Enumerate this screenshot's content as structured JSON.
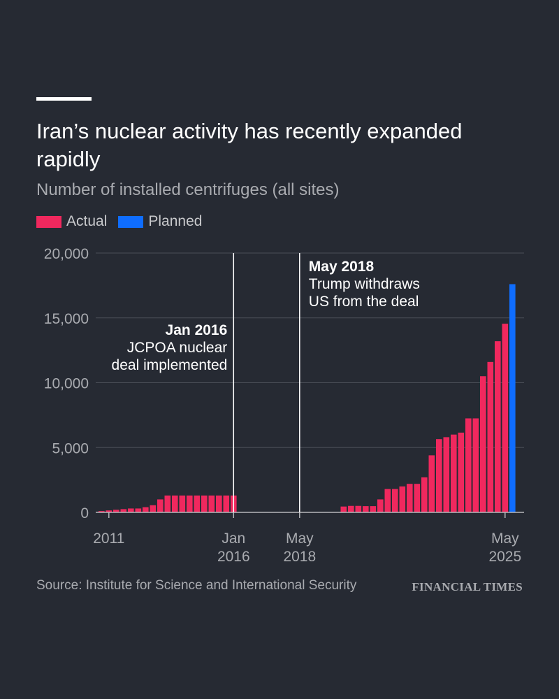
{
  "header": {
    "title": "Iran’s nuclear activity has recently expanded rapidly",
    "subtitle": "Number of installed centrifuges (all sites)"
  },
  "legend": [
    {
      "label": "Actual",
      "color": "#f0285e"
    },
    {
      "label": "Planned",
      "color": "#0f6dff"
    }
  ],
  "footer": {
    "source": "Source: Institute for Science and International Security",
    "brand": "FINANCIAL TIMES"
  },
  "chart_data": {
    "type": "bar",
    "ylim": [
      0,
      20000
    ],
    "y_ticks": [
      {
        "value": 0,
        "label": "0"
      },
      {
        "value": 5000,
        "label": "5,000"
      },
      {
        "value": 10000,
        "label": "10,000"
      },
      {
        "value": 15000,
        "label": "15,000"
      },
      {
        "value": 20000,
        "label": "20,000"
      }
    ],
    "x_ticks": [
      {
        "index": 1,
        "line1": "2011",
        "line2": ""
      },
      {
        "index": 18,
        "line1": "Jan",
        "line2": "2016"
      },
      {
        "index": 27,
        "line1": "May",
        "line2": "2018"
      },
      {
        "index": 55,
        "line1": "May",
        "line2": "2025"
      }
    ],
    "series": [
      {
        "name": "Actual",
        "color": "#f0285e",
        "values": [
          100,
          150,
          200,
          250,
          300,
          300,
          400,
          550,
          1000,
          1300,
          1300,
          1300,
          1300,
          1300,
          1300,
          1300,
          1300,
          1300,
          1300,
          0,
          0,
          0,
          0,
          0,
          0,
          0,
          0,
          0,
          0,
          0,
          0,
          0,
          0,
          450,
          500,
          500,
          480,
          480,
          1000,
          1800,
          1800,
          2000,
          2200,
          2200,
          2700,
          4400,
          5650,
          5800,
          6000,
          6150,
          7250,
          7250,
          10500,
          11600,
          13200,
          14550,
          0
        ]
      },
      {
        "name": "Planned",
        "color": "#0f6dff",
        "values": [
          0,
          0,
          0,
          0,
          0,
          0,
          0,
          0,
          0,
          0,
          0,
          0,
          0,
          0,
          0,
          0,
          0,
          0,
          0,
          0,
          0,
          0,
          0,
          0,
          0,
          0,
          0,
          0,
          0,
          0,
          0,
          0,
          0,
          0,
          0,
          0,
          0,
          0,
          0,
          0,
          0,
          0,
          0,
          0,
          0,
          0,
          0,
          0,
          0,
          0,
          0,
          0,
          0,
          0,
          0,
          0,
          17600
        ]
      }
    ],
    "annotations": [
      {
        "at_index": 18,
        "title": "Jan 2016",
        "lines": [
          "JCPOA nuclear",
          "deal implemented"
        ],
        "align": "right"
      },
      {
        "at_index": 27,
        "title": "May 2018",
        "lines": [
          "Trump withdraws",
          "US from the deal"
        ],
        "align": "left"
      }
    ]
  }
}
